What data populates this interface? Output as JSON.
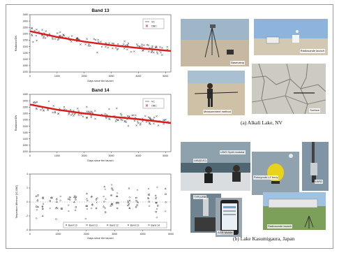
{
  "chart_data": [
    {
      "type": "scatter",
      "title": "Band 13",
      "xlabel": "Days since the launch",
      "ylabel": "Radiance/DN",
      "xlim": [
        0,
        5200
      ],
      "ylim": [
        1000,
        1450
      ],
      "xticks": [
        "0",
        "1000",
        "2000",
        "3000",
        "4000",
        "5000"
      ],
      "yticks": [
        "1000",
        "1050",
        "1100",
        "1150",
        "1200",
        "1250",
        "1300",
        "1350",
        "1400",
        "1450"
      ],
      "legend": [
        "VC",
        "OBC"
      ],
      "legend_position": "top-right",
      "trend": [
        [
          0,
          1320
        ],
        [
          1000,
          1275
        ],
        [
          2000,
          1238
        ],
        [
          3000,
          1210
        ],
        [
          4000,
          1188
        ],
        [
          5200,
          1165
        ]
      ],
      "scatter_spread": 45,
      "scatter_count": 130
    },
    {
      "type": "scatter",
      "title": "Band 14",
      "xlabel": "Days since the launch",
      "ylabel": "Radiance/DN",
      "xlim": [
        0,
        5200
      ],
      "ylim": [
        1000,
        1450
      ],
      "xticks": [
        "0",
        "1000",
        "2000",
        "3000",
        "4000",
        "5000"
      ],
      "yticks": [
        "1000",
        "1050",
        "1100",
        "1150",
        "1200",
        "1250",
        "1300",
        "1350",
        "1400",
        "1450"
      ],
      "legend": [
        "VC",
        "OBC"
      ],
      "legend_position": "top-right",
      "trend": [
        [
          0,
          1370
        ],
        [
          1000,
          1330
        ],
        [
          2000,
          1300
        ],
        [
          3000,
          1275
        ],
        [
          4000,
          1255
        ],
        [
          5200,
          1225
        ]
      ],
      "scatter_spread": 45,
      "scatter_count": 130
    },
    {
      "type": "scatter",
      "title": "",
      "xlabel": "Days since the launch",
      "ylabel": "Temperature difference [VC-OBC]",
      "xlim": [
        0,
        5000
      ],
      "ylim": [
        -4,
        4
      ],
      "xticks": [
        "0",
        "1000",
        "2000",
        "3000",
        "4000",
        "5000"
      ],
      "yticks": [
        "-4",
        "-2",
        "0",
        "2",
        "4"
      ],
      "series": [
        {
          "name": "Band 10",
          "marker": "circle"
        },
        {
          "name": "Band 11",
          "marker": "square"
        },
        {
          "name": "Band 12",
          "marker": "diamond"
        },
        {
          "name": "Band 13",
          "marker": "triangle"
        },
        {
          "name": "Band 14",
          "marker": "cross"
        }
      ],
      "clusters": [
        250,
        450,
        750,
        950,
        1100,
        1400,
        1600,
        2000,
        2200,
        2350,
        2650,
        2900,
        3100,
        3500,
        3800,
        4200,
        4500,
        4800
      ],
      "legend_position": "bottom"
    }
  ],
  "photos": {
    "basecamp": "Basecamp",
    "radiosonde_top": "Radiosonde launch",
    "measurement": "Measurement method",
    "surface": "Surface",
    "uav": "UAV(DJC)",
    "sonde_mount": "UWO Sprit modular",
    "buoy": "Rokuyoubi LZ buoy",
    "lw": "LW01",
    "sensor_small": "TYR,USB",
    "phone": "AGR Mobile",
    "radiosonde_bottom": "Radiosonde launch"
  },
  "captions": {
    "alkali": "(a) Alkali Lake, NV",
    "kasumigaura": "(b) Lake Kasumigaura, Japan"
  },
  "colors": {
    "trend": "#d91a1a",
    "points": "#333333",
    "frame": "#9a9a9a"
  }
}
